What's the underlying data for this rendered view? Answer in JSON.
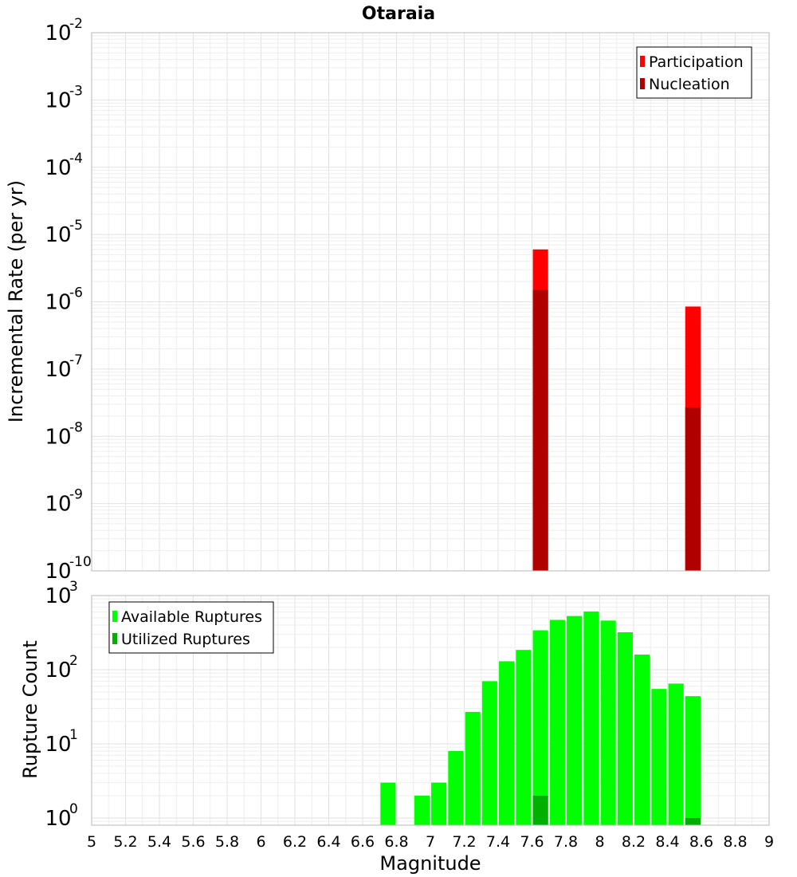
{
  "chart_data": [
    {
      "type": "bar",
      "title": "Otaraia",
      "xlabel": "",
      "ylabel": "Incremental Rate (per yr)",
      "yscale": "log",
      "ylim": [
        1e-10,
        0.01
      ],
      "xlim": [
        5,
        9
      ],
      "ytick_bases": [
        "10",
        "10",
        "10",
        "10",
        "10",
        "10",
        "10",
        "10",
        "10"
      ],
      "ytick_exponents": [
        "-10",
        "-9",
        "-8",
        "-7",
        "-6",
        "-5",
        "-4",
        "-3",
        "-2"
      ],
      "grid": true,
      "legend_position": "top-right",
      "bar_width": 0.09,
      "series": [
        {
          "name": "Participation",
          "color": "#ff0000",
          "x": [
            7.65,
            8.55
          ],
          "values": [
            6e-06,
            8.5e-07
          ]
        },
        {
          "name": "Nucleation",
          "color": "#b00000",
          "x": [
            7.65,
            8.55
          ],
          "values": [
            1.5e-06,
            2.7e-08
          ]
        }
      ]
    },
    {
      "type": "bar",
      "title": "",
      "xlabel": "Magnitude",
      "ylabel": "Rupture Count",
      "yscale": "log",
      "ylim": [
        0.8,
        1000
      ],
      "xlim": [
        5,
        9
      ],
      "ytick_bases": [
        "10",
        "10",
        "10",
        "10"
      ],
      "ytick_exponents": [
        "0",
        "1",
        "2",
        "3"
      ],
      "xticks": [
        "5",
        "5.2",
        "5.4",
        "5.6",
        "5.8",
        "6",
        "6.2",
        "6.4",
        "6.6",
        "6.8",
        "7",
        "7.2",
        "7.4",
        "7.6",
        "7.8",
        "8",
        "8.2",
        "8.4",
        "8.6",
        "8.8",
        "9"
      ],
      "grid": true,
      "legend_position": "top-left",
      "bar_width": 0.09,
      "series": [
        {
          "name": "Available Ruptures",
          "color": "#00ff00",
          "x": [
            6.75,
            6.95,
            7.05,
            7.15,
            7.25,
            7.35,
            7.45,
            7.55,
            7.65,
            7.75,
            7.85,
            7.95,
            8.05,
            8.15,
            8.25,
            8.35,
            8.45,
            8.55
          ],
          "values": [
            3,
            2,
            3,
            8,
            27,
            70,
            130,
            185,
            340,
            470,
            530,
            610,
            460,
            320,
            160,
            55,
            65,
            44
          ]
        },
        {
          "name": "Utilized Ruptures",
          "color": "#00b000",
          "x": [
            7.65,
            8.55
          ],
          "values": [
            2,
            1
          ]
        }
      ]
    }
  ]
}
